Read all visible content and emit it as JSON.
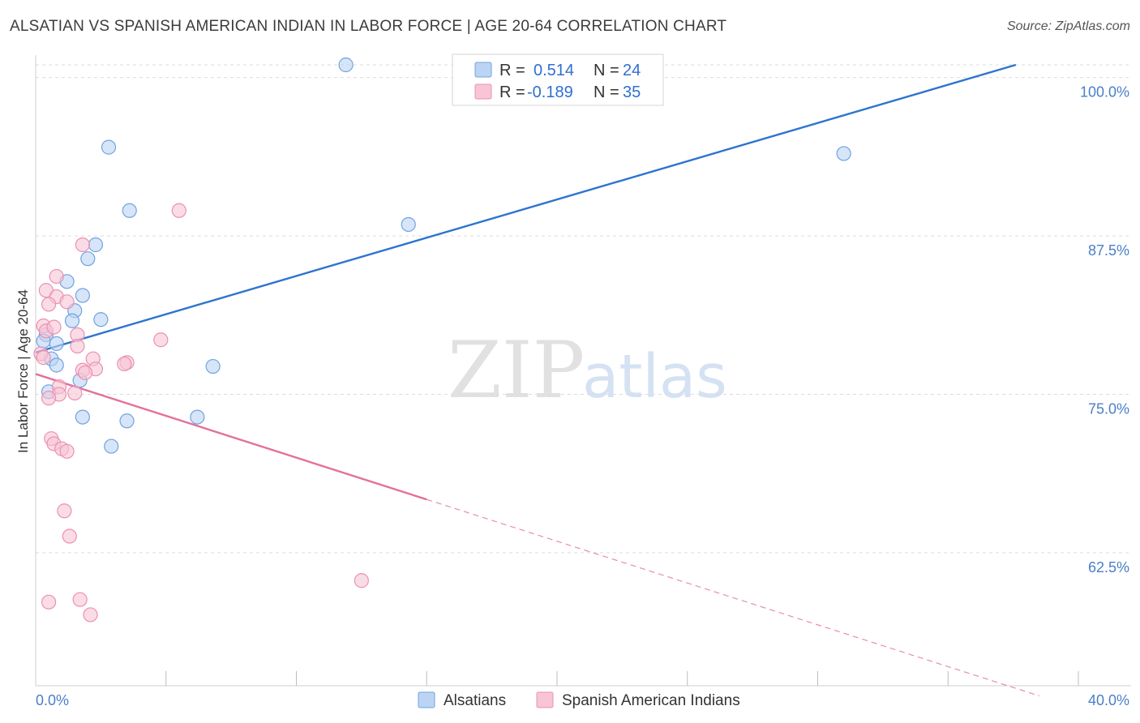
{
  "header": {
    "title": "ALSATIAN VS SPANISH AMERICAN INDIAN IN LABOR FORCE | AGE 20-64 CORRELATION CHART",
    "source": "Source: ZipAtlas.com"
  },
  "watermark": {
    "part1": "ZIP",
    "part2": "atlas"
  },
  "chart_data": {
    "type": "scatter",
    "ylabel": "In Labor Force | Age 20-64",
    "xlim": [
      0,
      40
    ],
    "ylim": [
      52.0,
      101.0
    ],
    "x_tick_labels": {
      "left": "0.0%",
      "right": "40.0%"
    },
    "y_ticks": [
      {
        "value": 100.0,
        "label": "100.0%"
      },
      {
        "value": 87.5,
        "label": "87.5%"
      },
      {
        "value": 75.0,
        "label": "75.0%"
      },
      {
        "value": 62.5,
        "label": "62.5%"
      }
    ],
    "legend": {
      "rows": [
        {
          "r_label": "R =",
          "r_value": "0.514",
          "n_label": "N =",
          "n_value": "24"
        },
        {
          "r_label": "R =",
          "r_value": "-0.189",
          "n_label": "N =",
          "n_value": "35"
        }
      ]
    },
    "series": [
      {
        "name": "Alsatians",
        "color": "#6fa3e0",
        "fill": "#bcd4f3",
        "line_color": "#2d74cf",
        "trend": {
          "x0": 0.0,
          "y0": 78.3,
          "x1": 37.6,
          "y1": 101.0
        },
        "points": [
          {
            "x": 11.9,
            "y": 101.0
          },
          {
            "x": 2.8,
            "y": 94.5
          },
          {
            "x": 31.0,
            "y": 94.0
          },
          {
            "x": 3.6,
            "y": 89.5
          },
          {
            "x": 14.3,
            "y": 88.4
          },
          {
            "x": 2.3,
            "y": 86.8
          },
          {
            "x": 2.0,
            "y": 85.7
          },
          {
            "x": 1.2,
            "y": 83.9
          },
          {
            "x": 1.8,
            "y": 82.8
          },
          {
            "x": 1.5,
            "y": 81.6
          },
          {
            "x": 2.5,
            "y": 80.9
          },
          {
            "x": 1.4,
            "y": 80.8
          },
          {
            "x": 0.4,
            "y": 79.7
          },
          {
            "x": 0.3,
            "y": 79.2
          },
          {
            "x": 0.8,
            "y": 79.0
          },
          {
            "x": 0.6,
            "y": 77.8
          },
          {
            "x": 0.8,
            "y": 77.3
          },
          {
            "x": 6.8,
            "y": 77.2
          },
          {
            "x": 1.7,
            "y": 76.1
          },
          {
            "x": 0.5,
            "y": 75.2
          },
          {
            "x": 1.8,
            "y": 73.2
          },
          {
            "x": 6.2,
            "y": 73.2
          },
          {
            "x": 3.5,
            "y": 72.9
          },
          {
            "x": 2.9,
            "y": 70.9
          }
        ]
      },
      {
        "name": "Spanish American Indians",
        "color": "#ec90b0",
        "fill": "#f7c5d5",
        "line_color": "#e3709b",
        "trend": {
          "x0": 0.0,
          "y0": 76.6,
          "x1": 15.0,
          "y1": 66.7
        },
        "trend_extension": {
          "x0": 15.0,
          "y0": 66.7,
          "x1": 38.5,
          "y1": 51.2
        },
        "points": [
          {
            "x": 5.5,
            "y": 89.5
          },
          {
            "x": 1.8,
            "y": 86.8
          },
          {
            "x": 0.8,
            "y": 84.3
          },
          {
            "x": 0.4,
            "y": 83.2
          },
          {
            "x": 0.8,
            "y": 82.7
          },
          {
            "x": 1.2,
            "y": 82.3
          },
          {
            "x": 0.5,
            "y": 82.1
          },
          {
            "x": 0.3,
            "y": 80.4
          },
          {
            "x": 0.4,
            "y": 80.0
          },
          {
            "x": 1.6,
            "y": 79.7
          },
          {
            "x": 4.8,
            "y": 79.3
          },
          {
            "x": 1.6,
            "y": 78.8
          },
          {
            "x": 0.2,
            "y": 78.2
          },
          {
            "x": 0.3,
            "y": 77.9
          },
          {
            "x": 2.2,
            "y": 77.8
          },
          {
            "x": 3.5,
            "y": 77.5
          },
          {
            "x": 3.4,
            "y": 77.4
          },
          {
            "x": 2.3,
            "y": 77.0
          },
          {
            "x": 1.8,
            "y": 76.9
          },
          {
            "x": 1.9,
            "y": 76.7
          },
          {
            "x": 0.9,
            "y": 75.6
          },
          {
            "x": 1.5,
            "y": 75.1
          },
          {
            "x": 0.9,
            "y": 75.0
          },
          {
            "x": 0.5,
            "y": 74.7
          },
          {
            "x": 0.6,
            "y": 71.5
          },
          {
            "x": 0.7,
            "y": 71.1
          },
          {
            "x": 1.0,
            "y": 70.7
          },
          {
            "x": 1.2,
            "y": 70.5
          },
          {
            "x": 1.1,
            "y": 65.8
          },
          {
            "x": 1.3,
            "y": 63.8
          },
          {
            "x": 12.5,
            "y": 60.3
          },
          {
            "x": 0.5,
            "y": 58.6
          },
          {
            "x": 1.7,
            "y": 58.8
          },
          {
            "x": 2.1,
            "y": 57.6
          },
          {
            "x": 0.7,
            "y": 80.3
          }
        ]
      }
    ]
  }
}
